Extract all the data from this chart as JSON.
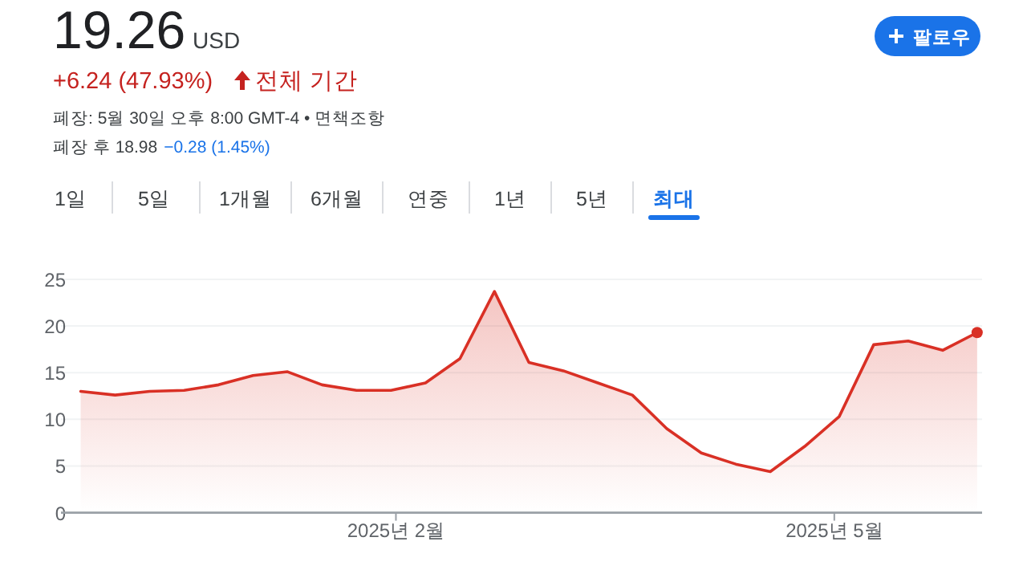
{
  "chart_data": {
    "type": "area",
    "title": "19.26",
    "subtitle": "USD",
    "x": [
      "2024-11-29",
      "2024-12-06",
      "2024-12-13",
      "2024-12-20",
      "2024-12-27",
      "2025-01-03",
      "2025-01-10",
      "2025-01-17",
      "2025-01-24",
      "2025-01-31",
      "2025-02-07",
      "2025-02-14",
      "2025-02-21",
      "2025-02-28",
      "2025-03-07",
      "2025-03-14",
      "2025-03-21",
      "2025-03-28",
      "2025-04-04",
      "2025-04-11",
      "2025-04-18",
      "2025-04-25",
      "2025-05-02",
      "2025-05-09",
      "2025-05-16",
      "2025-05-23",
      "2025-05-30"
    ],
    "series": [
      {
        "color": "#d93025",
        "values": [
          13.0,
          12.6,
          13.0,
          13.1,
          13.7,
          14.7,
          15.1,
          13.7,
          13.1,
          13.1,
          13.9,
          16.5,
          23.7,
          16.1,
          15.2,
          13.9,
          12.6,
          9.0,
          6.4,
          5.2,
          4.4,
          7.1,
          10.3,
          18.0,
          18.4,
          17.4,
          19.3
        ]
      }
    ],
    "xlim": [
      "2024-11-25",
      "2025-05-31"
    ],
    "xticks": [
      {
        "value": "2025-02-01",
        "label": "2025년 2월"
      },
      {
        "value": "2025-05-01",
        "label": "2025년 5월"
      }
    ],
    "ylim": [
      0,
      25
    ],
    "yticks": [
      0,
      5,
      10,
      15,
      20,
      25
    ],
    "grid": "y",
    "marker": "none",
    "line_style": "solid",
    "annotations": [
      "+6.24 (47.93%)",
      "전체 기간",
      "폐장: 5월 30일 오후 8:00 GMT-4 • 면책조항",
      "폐장 후 18.98",
      "−0.28 (1.45%)",
      "1일",
      "5일",
      "1개월",
      "6개월",
      "연중",
      "1년",
      "5년",
      "최대",
      "팔로우"
    ]
  }
}
